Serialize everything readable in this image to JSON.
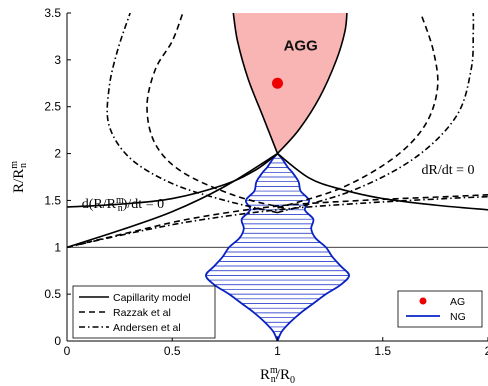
{
  "chart_data": {
    "type": "line",
    "title": "",
    "xlabel": {
      "base": "R",
      "sup": "m",
      "sub": "n",
      "tail": "/R",
      "tail_sub": "0"
    },
    "ylabel": {
      "base": "R/R",
      "sup": "m",
      "sub": "n"
    },
    "xlim": [
      0,
      2
    ],
    "ylim": [
      0,
      3.5
    ],
    "xticks": [
      0,
      0.5,
      1,
      1.5,
      2
    ],
    "xtick_labels": [
      "0",
      "0.5",
      "1",
      "1.5",
      "2"
    ],
    "yticks": [
      0,
      0.5,
      1,
      1.5,
      2,
      2.5,
      3,
      3.5
    ],
    "ytick_labels": [
      "0",
      "0.5",
      "1",
      "1.5",
      "2",
      "2.5",
      "3",
      "3.5"
    ],
    "grid": false,
    "annotations": [
      {
        "text": "AGG",
        "x": 1.11,
        "y": 3.1
      },
      {
        "text": "dR/dt = 0",
        "x": 1.81,
        "y": 1.78
      },
      {
        "text": "d(R/R",
        "sup": "m",
        "sub": "n",
        "tail": ")/dt = 0",
        "x": 0.07,
        "y": 1.42
      }
    ],
    "reference_lines": [
      {
        "orientation": "horizontal",
        "y": 1
      },
      {
        "orientation": "vertical",
        "x": 1
      }
    ],
    "agg_region": {
      "color": "#f9b4b4",
      "left_edge": [
        [
          1.0,
          2.0
        ],
        [
          0.93,
          2.4
        ],
        [
          0.86,
          2.8
        ],
        [
          0.81,
          3.2
        ],
        [
          0.79,
          3.5
        ]
      ],
      "right_edge": [
        [
          1.0,
          2.0
        ],
        [
          1.1,
          2.25
        ],
        [
          1.2,
          2.6
        ],
        [
          1.28,
          3.0
        ],
        [
          1.32,
          3.3
        ],
        [
          1.33,
          3.5
        ]
      ]
    },
    "series": [
      {
        "name": "Capillarity model",
        "style": "solid",
        "color": "#000000",
        "lines": [
          [
            [
              0.0,
              1.0
            ],
            [
              0.25,
              1.18
            ],
            [
              0.5,
              1.38
            ],
            [
              0.75,
              1.65
            ],
            [
              1.0,
              2.0
            ]
          ],
          [
            [
              1.0,
              2.0
            ],
            [
              1.15,
              1.74
            ],
            [
              1.3,
              1.62
            ],
            [
              1.5,
              1.52
            ],
            [
              1.75,
              1.45
            ],
            [
              2.0,
              1.4
            ]
          ],
          [
            [
              1.0,
              2.0
            ],
            [
              0.9,
              1.83
            ],
            [
              0.75,
              1.67
            ],
            [
              0.5,
              1.52
            ],
            [
              0.25,
              1.46
            ],
            [
              0.0,
              1.43
            ]
          ]
        ]
      },
      {
        "name": "Razzak et al",
        "style": "dashed",
        "color": "#000000",
        "lines": [
          [
            [
              0.0,
              1.0
            ],
            [
              0.3,
              1.16
            ],
            [
              0.6,
              1.31
            ],
            [
              1.0,
              1.44
            ],
            [
              1.4,
              1.5
            ],
            [
              1.8,
              1.54
            ],
            [
              2.0,
              1.56
            ]
          ],
          [
            [
              1.03,
              1.42
            ],
            [
              0.8,
              1.55
            ],
            [
              0.55,
              1.8
            ],
            [
              0.42,
              2.1
            ],
            [
              0.38,
              2.5
            ],
            [
              0.42,
              2.9
            ],
            [
              0.5,
              3.2
            ],
            [
              0.55,
              3.5
            ]
          ],
          [
            [
              1.0,
              1.42
            ],
            [
              1.3,
              1.63
            ],
            [
              1.55,
              1.95
            ],
            [
              1.7,
              2.3
            ],
            [
              1.76,
              2.7
            ],
            [
              1.74,
              3.1
            ],
            [
              1.68,
              3.5
            ]
          ]
        ]
      },
      {
        "name": "Andersen et al",
        "style": "dashdot",
        "color": "#000000",
        "lines": [
          [
            [
              0.0,
              1.0
            ],
            [
              0.3,
              1.15
            ],
            [
              0.6,
              1.28
            ],
            [
              1.0,
              1.4
            ],
            [
              1.4,
              1.47
            ],
            [
              1.8,
              1.52
            ],
            [
              2.0,
              1.54
            ]
          ],
          [
            [
              1.0,
              1.37
            ],
            [
              0.75,
              1.5
            ],
            [
              0.5,
              1.68
            ],
            [
              0.3,
              1.95
            ],
            [
              0.2,
              2.3
            ],
            [
              0.2,
              2.7
            ],
            [
              0.24,
              3.1
            ],
            [
              0.3,
              3.5
            ]
          ],
          [
            [
              1.0,
              1.37
            ],
            [
              1.35,
              1.6
            ],
            [
              1.65,
              1.95
            ],
            [
              1.85,
              2.4
            ],
            [
              1.92,
              2.9
            ],
            [
              1.93,
              3.3
            ],
            [
              1.93,
              3.5
            ]
          ]
        ]
      }
    ],
    "ag_point": {
      "name": "AG",
      "x": 1.0,
      "y": 2.75,
      "color": "#ee0000"
    },
    "ng_distribution": {
      "name": "NG",
      "color": "#0a22c4",
      "center_x": 1.0,
      "profile": [
        [
          0.0,
          0.0
        ],
        [
          0.1,
          0.02
        ],
        [
          0.2,
          0.06
        ],
        [
          0.3,
          0.11
        ],
        [
          0.4,
          0.17
        ],
        [
          0.5,
          0.23
        ],
        [
          0.6,
          0.3
        ],
        [
          0.7,
          0.34
        ],
        [
          0.8,
          0.3
        ],
        [
          0.9,
          0.26
        ],
        [
          1.0,
          0.23
        ],
        [
          1.1,
          0.18
        ],
        [
          1.2,
          0.16
        ],
        [
          1.3,
          0.17
        ],
        [
          1.4,
          0.13
        ],
        [
          1.5,
          0.15
        ],
        [
          1.6,
          0.11
        ],
        [
          1.7,
          0.1
        ],
        [
          1.8,
          0.07
        ],
        [
          1.85,
          0.05
        ],
        [
          1.9,
          0.035
        ],
        [
          1.95,
          0.02
        ],
        [
          2.0,
          0.0
        ]
      ]
    },
    "legend_left": {
      "placement": "bottom-left",
      "entries": [
        {
          "label": "Capillarity model",
          "style": "solid"
        },
        {
          "label": "Razzak et al",
          "style": "dashed"
        },
        {
          "label": "Andersen et al",
          "style": "dashdot"
        }
      ]
    },
    "legend_right": {
      "placement": "bottom-right",
      "entries": [
        {
          "label": "AG",
          "marker": "dot",
          "color": "#ee0000"
        },
        {
          "label": "NG",
          "marker": "line",
          "color": "#0a22c4"
        }
      ]
    }
  }
}
